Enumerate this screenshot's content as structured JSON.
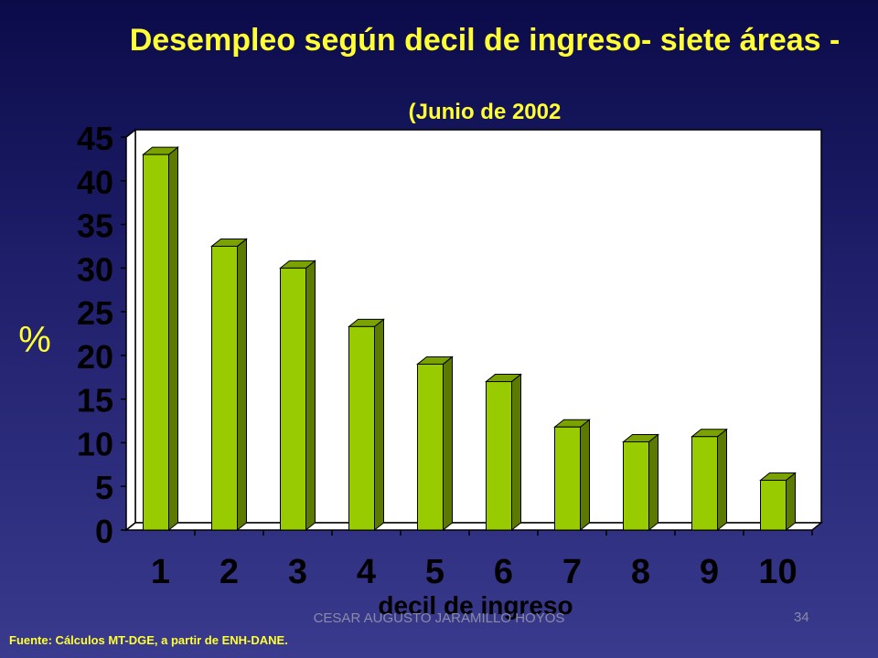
{
  "slide": {
    "title": "Desempleo según decil de ingreso- siete áreas -",
    "subtitle": "(Junio de 2002",
    "source": "Fuente: Cálculos MT-DGE, a partir de ENH-DANE.",
    "author": "CESAR AUGUSTO JARAMILLO HOYOS",
    "page_number": "34"
  },
  "colors": {
    "bar_front": "#99cc00",
    "bar_side": "#5c7a00",
    "bar_top": "#7aa300",
    "title": "#ffff33",
    "axis_text": "#ffff33",
    "tick_text": "#000000"
  },
  "chart_data": {
    "type": "bar",
    "title": "Desempleo según decil de ingreso- siete áreas -",
    "subtitle": "(Junio de 2002",
    "xlabel": "decil de ingreso",
    "ylabel": "%",
    "categories": [
      "1",
      "2",
      "3",
      "4",
      "5",
      "6",
      "7",
      "8",
      "9",
      "10"
    ],
    "values": [
      43,
      32.5,
      30,
      23.3,
      19,
      17,
      11.8,
      10.1,
      10.7,
      5.7
    ],
    "ylim": [
      0,
      45
    ],
    "yticks": [
      "0",
      "5",
      "10",
      "15",
      "20",
      "25",
      "30",
      "35",
      "40",
      "45"
    ],
    "grid": false,
    "legend": "none"
  }
}
